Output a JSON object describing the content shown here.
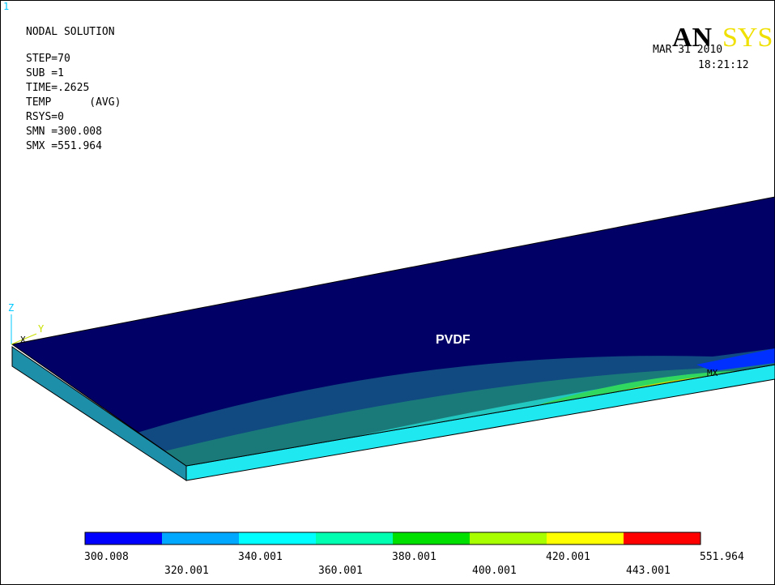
{
  "window_number": "1",
  "header": {
    "title": "NODAL SOLUTION",
    "lines": [
      "STEP=70",
      "SUB =1",
      "TIME=.2625",
      "TEMP      (AVG)",
      "RSYS=0",
      "SMN =300.008",
      "SMX =551.964"
    ]
  },
  "logo": {
    "part1": "AN",
    "part2": "SYS"
  },
  "date": "MAR 31 2010",
  "time": "18:21:12",
  "triad": {
    "z": "Z",
    "y": "Y",
    "x": "X"
  },
  "max_marker": "MX",
  "model_label": "PVDF",
  "legend": {
    "colors": [
      "#0000ff",
      "#00a8ff",
      "#00ffff",
      "#00ffb0",
      "#00e000",
      "#a8ff00",
      "#ffff00",
      "#ff0000"
    ],
    "labels": [
      "300.008",
      "320.001",
      "340.001",
      "360.001",
      "380.001",
      "400.001",
      "420.001",
      "443.001",
      "551.964"
    ]
  }
}
